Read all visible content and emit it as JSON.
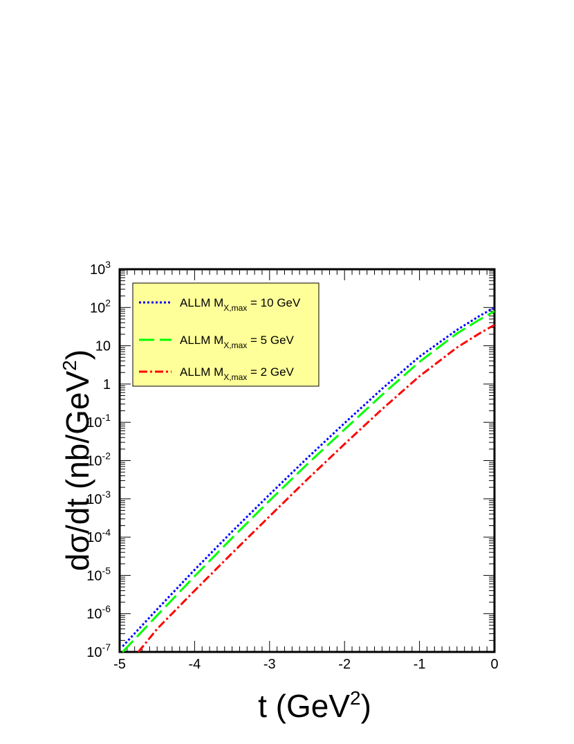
{
  "chart_data": {
    "type": "line",
    "xlabel": "t (GeV",
    "xlabel_sup": "2",
    "xlabel_close": ")",
    "ylabel_pre": "d",
    "ylabel_sigma": "σ",
    "ylabel_post": "/dt (nb/GeV",
    "ylabel_sup": "2",
    "ylabel_close": ")",
    "xlim": [
      -5,
      0
    ],
    "ylim": [
      1e-07,
      1000
    ],
    "yscale": "log",
    "x_ticks": [
      "-5",
      "-4",
      "-3",
      "-2",
      "-1",
      "0"
    ],
    "y_ticks": [
      {
        "base": "10",
        "exp": "3"
      },
      {
        "base": "10",
        "exp": "2"
      },
      {
        "base": "10",
        "exp": ""
      },
      {
        "base": "1",
        "exp": ""
      },
      {
        "base": "10",
        "exp": "-1"
      },
      {
        "base": "10",
        "exp": "-2"
      },
      {
        "base": "10",
        "exp": "-3"
      },
      {
        "base": "10",
        "exp": "-4"
      },
      {
        "base": "10",
        "exp": "-5"
      },
      {
        "base": "10",
        "exp": "-6"
      },
      {
        "base": "10",
        "exp": "-7"
      }
    ],
    "legend": {
      "placement": "top-left",
      "background": "#ffff99"
    },
    "series": [
      {
        "name_main": "ALLM M",
        "name_sub": "X,max",
        "name_tail": " = 10 GeV",
        "color": "#0000ff",
        "style": "dotted",
        "points": [
          [
            -4.96,
            1.4e-07
          ],
          [
            -4.5,
            1.3e-06
          ],
          [
            -4,
            1.4e-05
          ],
          [
            -3.5,
            0.00014
          ],
          [
            -3,
            0.0013
          ],
          [
            -2.5,
            0.0115
          ],
          [
            -2,
            0.095
          ],
          [
            -1.5,
            0.75
          ],
          [
            -1,
            5.2
          ],
          [
            -0.5,
            26
          ],
          [
            -0.2,
            60
          ],
          [
            0,
            100
          ]
        ]
      },
      {
        "name_main": "ALLM M",
        "name_sub": "X,max",
        "name_tail": " = 5 GeV",
        "color": "#00ff00",
        "style": "dashed",
        "points": [
          [
            -4.96,
            1e-07
          ],
          [
            -4.5,
            9e-07
          ],
          [
            -4,
            9.5e-06
          ],
          [
            -3.5,
            9.5e-05
          ],
          [
            -3,
            0.0009
          ],
          [
            -2.5,
            0.008
          ],
          [
            -2,
            0.065
          ],
          [
            -1.5,
            0.52
          ],
          [
            -1,
            3.8
          ],
          [
            -0.5,
            21
          ],
          [
            -0.2,
            48
          ],
          [
            0,
            80
          ]
        ]
      },
      {
        "name_main": "ALLM M",
        "name_sub": "X,max",
        "name_tail": " = 2 GeV",
        "color": "#ff0000",
        "style": "dashdot",
        "points": [
          [
            -4.75,
            1e-07
          ],
          [
            -4.5,
            4e-07
          ],
          [
            -4,
            4e-06
          ],
          [
            -3.5,
            3.8e-05
          ],
          [
            -3,
            0.00035
          ],
          [
            -2.5,
            0.0032
          ],
          [
            -2,
            0.027
          ],
          [
            -1.5,
            0.22
          ],
          [
            -1,
            1.6
          ],
          [
            -0.5,
            9
          ],
          [
            -0.2,
            21
          ],
          [
            0,
            35
          ]
        ]
      }
    ]
  }
}
